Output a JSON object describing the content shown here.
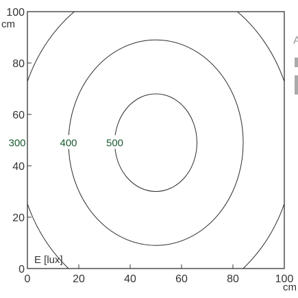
{
  "chart_data": {
    "type": "contour",
    "x_ticks": [
      0,
      20,
      40,
      60,
      80,
      100
    ],
    "y_ticks": [
      0,
      20,
      40,
      60,
      80,
      100
    ],
    "xlim": [
      0,
      100
    ],
    "ylim": [
      0,
      100
    ],
    "x_unit": "cm",
    "y_unit": "cm",
    "grid": false,
    "quantity_label": "E [lux]",
    "contours": [
      {
        "value": 500,
        "label": "500",
        "center": [
          50,
          49
        ],
        "radius_x": 16,
        "radius_y": 19
      },
      {
        "value": 400,
        "label": "400",
        "center": [
          50,
          49
        ],
        "radius_x": 34,
        "radius_y": 40
      },
      {
        "value": 300,
        "label": "300",
        "center": [
          50,
          49
        ],
        "radius_x": 54,
        "radius_y": 63
      }
    ],
    "colors": {
      "contour_line": "#2a2a2a",
      "contour_label": "#1b5a32",
      "axes": "#333333"
    }
  },
  "edge_text": "A"
}
